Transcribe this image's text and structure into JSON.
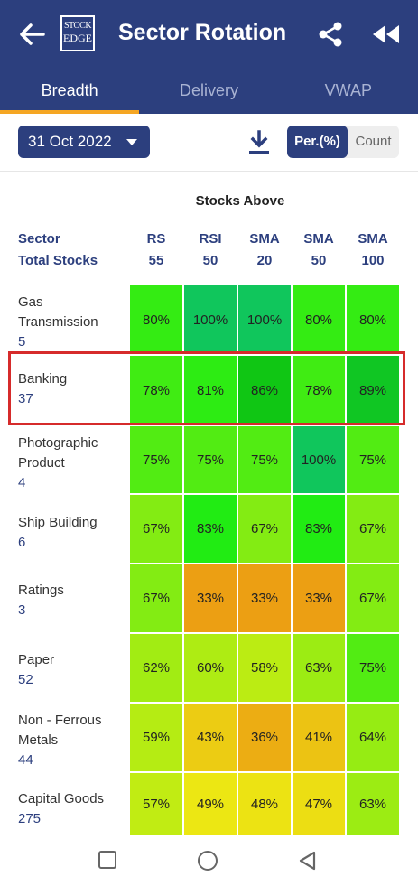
{
  "app": {
    "title": "Sector Rotation",
    "logo_line1": "STOCK",
    "logo_line2": "EDGE"
  },
  "tabs": [
    {
      "label": "Breadth",
      "active": true
    },
    {
      "label": "Delivery",
      "active": false
    },
    {
      "label": "VWAP",
      "active": false
    }
  ],
  "toolbar": {
    "date": "31 Oct 2022",
    "toggle_percent": "Per.(%)",
    "toggle_count": "Count"
  },
  "table": {
    "stocks_above_label": "Stocks Above",
    "sector_header": "Sector",
    "total_stocks_header": "Total Stocks",
    "columns": [
      {
        "name": "RS",
        "period": "55"
      },
      {
        "name": "RSI",
        "period": "50"
      },
      {
        "name": "SMA",
        "period": "20"
      },
      {
        "name": "SMA",
        "period": "50"
      },
      {
        "name": "SMA",
        "period": "100"
      }
    ],
    "rows": [
      {
        "sector": "Gas Transmission",
        "total": "5",
        "values": [
          "80%",
          "100%",
          "100%",
          "80%",
          "80%"
        ]
      },
      {
        "sector": "Banking",
        "total": "37",
        "values": [
          "78%",
          "81%",
          "86%",
          "78%",
          "89%"
        ]
      },
      {
        "sector": "Photographic Product",
        "total": "4",
        "values": [
          "75%",
          "75%",
          "75%",
          "100%",
          "75%"
        ]
      },
      {
        "sector": "Ship Building",
        "total": "6",
        "values": [
          "67%",
          "83%",
          "67%",
          "83%",
          "67%"
        ]
      },
      {
        "sector": "Ratings",
        "total": "3",
        "values": [
          "67%",
          "33%",
          "33%",
          "33%",
          "67%"
        ]
      },
      {
        "sector": "Paper",
        "total": "52",
        "values": [
          "62%",
          "60%",
          "58%",
          "63%",
          "75%"
        ]
      },
      {
        "sector": "Non - Ferrous Metals",
        "total": "44",
        "values": [
          "59%",
          "43%",
          "36%",
          "41%",
          "64%"
        ]
      },
      {
        "sector": "Capital Goods",
        "total": "275",
        "values": [
          "57%",
          "49%",
          "48%",
          "47%",
          "63%"
        ]
      }
    ]
  },
  "colors": {
    "header_bg": "#2c3f7e",
    "tab_indicator": "#f5a623",
    "highlight_border": "#d62b2b"
  },
  "icons": {
    "back": "arrow-left-icon",
    "share": "share-icon",
    "rewind": "rewind-icon",
    "download": "download-icon",
    "dropdown": "chevron-down-icon"
  }
}
